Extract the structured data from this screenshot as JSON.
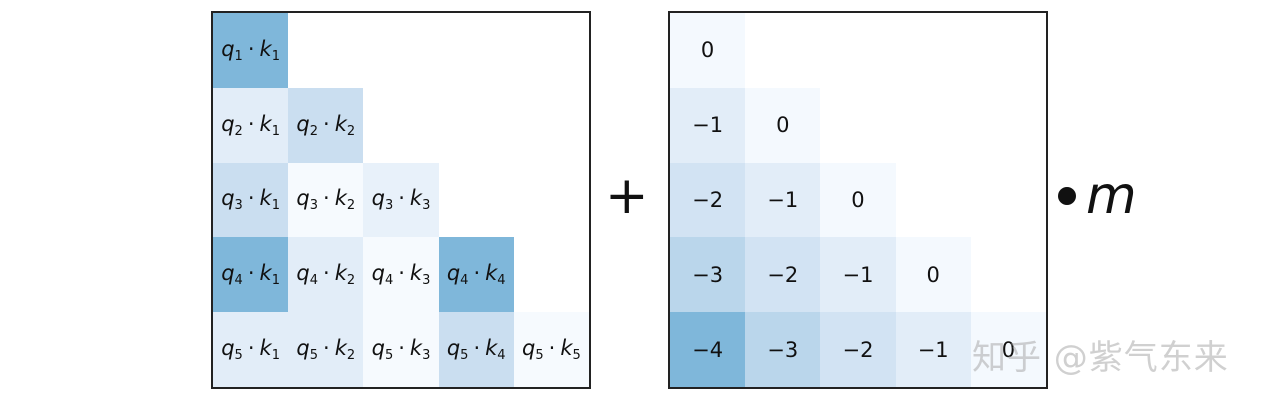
{
  "left_matrix": {
    "rows": [
      [
        {
          "q": "1",
          "k": "1",
          "color": "#7fb7da"
        },
        null,
        null,
        null,
        null
      ],
      [
        {
          "q": "2",
          "k": "1",
          "color": "#e2edf8"
        },
        {
          "q": "2",
          "k": "2",
          "color": "#cadef0"
        },
        null,
        null,
        null
      ],
      [
        {
          "q": "3",
          "k": "1",
          "color": "#cadef0"
        },
        {
          "q": "3",
          "k": "2",
          "color": "#f6fafe"
        },
        {
          "q": "3",
          "k": "3",
          "color": "#e8f1fa"
        },
        null,
        null
      ],
      [
        {
          "q": "4",
          "k": "1",
          "color": "#7fb7da"
        },
        {
          "q": "4",
          "k": "2",
          "color": "#e2edf8"
        },
        {
          "q": "4",
          "k": "3",
          "color": "#f6fafe"
        },
        {
          "q": "4",
          "k": "4",
          "color": "#7fb7da"
        },
        null
      ],
      [
        {
          "q": "5",
          "k": "1",
          "color": "#e2edf8"
        },
        {
          "q": "5",
          "k": "2",
          "color": "#e2edf8"
        },
        {
          "q": "5",
          "k": "3",
          "color": "#f6fafe"
        },
        {
          "q": "5",
          "k": "4",
          "color": "#cadef0"
        },
        {
          "q": "5",
          "k": "5",
          "color": "#f6fafe"
        }
      ]
    ]
  },
  "plus_symbol": "+",
  "right_matrix": {
    "rows": [
      [
        {
          "value": "0",
          "color": "#f4f9fe"
        },
        null,
        null,
        null,
        null
      ],
      [
        {
          "value": "−1",
          "color": "#e2edf8"
        },
        {
          "value": "0",
          "color": "#f4f9fe"
        },
        null,
        null,
        null
      ],
      [
        {
          "value": "−2",
          "color": "#d2e3f3"
        },
        {
          "value": "−1",
          "color": "#e2edf8"
        },
        {
          "value": "0",
          "color": "#f4f9fe"
        },
        null,
        null
      ],
      [
        {
          "value": "−3",
          "color": "#bad6eb"
        },
        {
          "value": "−2",
          "color": "#d2e3f3"
        },
        {
          "value": "−1",
          "color": "#e2edf8"
        },
        {
          "value": "0",
          "color": "#f4f9fe"
        },
        null
      ],
      [
        {
          "value": "−4",
          "color": "#7fb7da"
        },
        {
          "value": "−3",
          "color": "#bad6eb"
        },
        {
          "value": "−2",
          "color": "#d2e3f3"
        },
        {
          "value": "−1",
          "color": "#e2edf8"
        },
        {
          "value": "0",
          "color": "#f4f9fe"
        }
      ]
    ]
  },
  "scale_variable": "m",
  "watermark": "知乎 @紫气东来"
}
